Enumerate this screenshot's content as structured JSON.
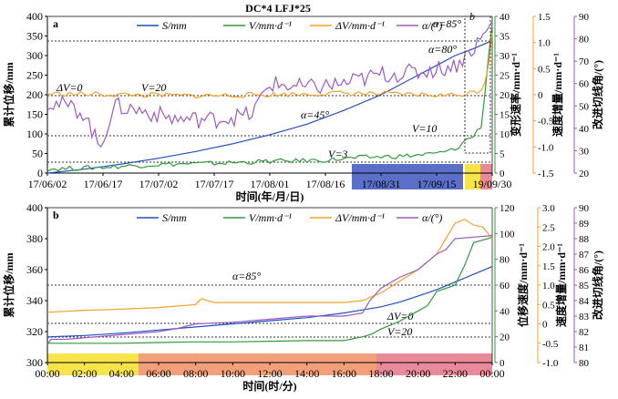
{
  "chart_data": [
    {
      "panel": "a",
      "type": "line",
      "title": "DC*4  LFJ*25",
      "xlabel": "时间(年/月/日)",
      "x_ticks": [
        "17/06/02",
        "17/06/17",
        "17/07/02",
        "17/07/17",
        "17/08/01",
        "17/08/16",
        "17/08/31",
        "17/09/15",
        "19/09/30"
      ],
      "y1": {
        "label": "累计位移/mm",
        "ticks": [
          "0",
          "50",
          "100",
          "150",
          "200",
          "250",
          "300",
          "350",
          "400"
        ],
        "lim": [
          0,
          400
        ]
      },
      "y2": {
        "label": "变形速率/mm·d⁻¹",
        "ticks": [
          "0",
          "5",
          "10",
          "15",
          "20",
          "25",
          "30",
          "35",
          "40"
        ],
        "lim": [
          0,
          40
        ]
      },
      "y3": {
        "label": "速度增量/mm·d⁻¹",
        "ticks": [
          "-1.5",
          "-1.0",
          "-0.5",
          "0",
          "0.5",
          "1.0",
          "1.5"
        ],
        "lim": [
          -1.5,
          1.5
        ]
      },
      "y4": {
        "label": "改进切线角/(°)",
        "ticks": [
          "20",
          "30",
          "40",
          "50",
          "60",
          "70",
          "80",
          "90"
        ],
        "lim": [
          20,
          90
        ]
      },
      "legend": [
        "S/mm",
        "V/mm·d⁻¹",
        "ΔV/mm·d⁻¹",
        "α/(°)"
      ],
      "annotations": [
        "ΔV=0",
        "V=20",
        "α=85°",
        "α=80°",
        "α=45°",
        "V=10",
        "V=3",
        "b"
      ],
      "series": [
        {
          "name": "S/mm",
          "x_days": [
            0,
            10,
            20,
            30,
            40,
            50,
            60,
            70,
            80,
            90,
            100,
            105,
            110,
            115,
            118,
            120
          ],
          "values": [
            0,
            10,
            23,
            38,
            55,
            75,
            98,
            125,
            160,
            200,
            250,
            275,
            300,
            318,
            330,
            338
          ]
        },
        {
          "name": "V/mm·d⁻¹",
          "x_days": [
            0,
            15,
            30,
            45,
            60,
            75,
            85,
            95,
            100,
            105,
            110,
            113,
            115,
            117,
            118,
            119,
            120
          ],
          "values": [
            1.0,
            1.5,
            2.2,
            2.5,
            3.0,
            3.3,
            4.0,
            4.3,
            4.6,
            5.0,
            6.0,
            8.5,
            9.5,
            12.0,
            20.0,
            30.0,
            38.0
          ]
        },
        {
          "name": "ΔV/mm·d⁻¹",
          "x_days": [
            0,
            20,
            40,
            60,
            80,
            100,
            110,
            115,
            117,
            118,
            119,
            120
          ],
          "values": [
            0.02,
            0.0,
            -0.02,
            0.0,
            0.03,
            0.0,
            -0.01,
            0.05,
            0.1,
            0.25,
            0.6,
            1.2
          ]
        },
        {
          "name": "α/(°)",
          "x_days": [
            0,
            5,
            10,
            14,
            18,
            25,
            35,
            45,
            55,
            60,
            70,
            80,
            90,
            100,
            110,
            115,
            118,
            120
          ],
          "values": [
            52,
            50,
            47,
            31,
            50,
            48,
            44,
            44,
            46,
            60,
            58,
            60,
            64,
            65,
            68,
            76,
            82,
            87
          ]
        }
      ],
      "bands": [
        "blue",
        "yellow",
        "red"
      ]
    },
    {
      "panel": "b",
      "type": "line",
      "xlabel": "时间(时/分)",
      "x_ticks": [
        "00:00",
        "02:00",
        "04:00",
        "06:00",
        "08:00",
        "10:00",
        "12:00",
        "14:00",
        "16:00",
        "18:00",
        "20:00",
        "22:00",
        "00:00"
      ],
      "y1": {
        "label": "累计位移/mm",
        "ticks": [
          "300",
          "320",
          "340",
          "360",
          "380",
          "400"
        ],
        "lim": [
          300,
          400
        ]
      },
      "y2": {
        "label": "位移速度/mm·d⁻¹",
        "ticks": [
          "0",
          "20",
          "40",
          "60",
          "80",
          "100",
          "120"
        ],
        "lim": [
          0,
          120
        ]
      },
      "y3": {
        "label": "速度增量/mm·d⁻¹",
        "ticks": [
          "-1.0",
          "-0.5",
          "0",
          "0.5",
          "1.0",
          "1.5",
          "2.0",
          "2.5",
          "3.0"
        ],
        "lim": [
          -1.0,
          3.0
        ]
      },
      "y4": {
        "label": "改进切线角/(°)",
        "ticks": [
          "80",
          "81",
          "82",
          "83",
          "84",
          "85",
          "86",
          "87",
          "88",
          "89",
          "90"
        ],
        "lim": [
          80,
          90
        ]
      },
      "legend": [
        "S/mm",
        "V/mm·d⁻¹",
        "ΔV/mm·d⁻¹",
        "α/(°)"
      ],
      "annotations": [
        "α=85°",
        "ΔV=0",
        "V=20"
      ],
      "series": [
        {
          "name": "S/mm",
          "x_hours": [
            0,
            2,
            4,
            6,
            8,
            10,
            12,
            14,
            16,
            17,
            18,
            19,
            20,
            21,
            22,
            23,
            24
          ],
          "values": [
            316.5,
            317.5,
            319,
            321,
            323,
            325,
            327,
            329,
            332,
            334,
            336,
            339,
            343,
            347,
            352,
            357,
            362
          ]
        },
        {
          "name": "V/mm·d⁻¹",
          "x_hours": [
            0,
            2,
            4,
            6,
            8,
            10,
            12,
            14,
            16,
            17,
            17.5,
            18,
            19,
            20,
            20.5,
            21,
            22,
            22.5,
            23,
            24
          ],
          "values": [
            15,
            15,
            15,
            15.5,
            16,
            16,
            16.5,
            17,
            17,
            20,
            22,
            26,
            32,
            40,
            44,
            55,
            60,
            75,
            93,
            97
          ]
        },
        {
          "name": "ΔV/mm·d⁻¹",
          "x_hours": [
            0,
            2,
            4,
            6,
            8,
            8.3,
            9,
            12,
            14,
            16,
            17,
            18,
            19,
            20,
            21,
            22,
            22.5,
            23,
            23.5,
            24
          ],
          "values": [
            0.3,
            0.35,
            0.38,
            0.42,
            0.5,
            0.65,
            0.55,
            0.55,
            0.55,
            0.55,
            0.6,
            0.8,
            1.1,
            1.4,
            1.8,
            2.6,
            2.7,
            2.55,
            2.5,
            2.2
          ]
        },
        {
          "name": "α/(°)",
          "x_hours": [
            0,
            0.2,
            1,
            4,
            6,
            7,
            8,
            10,
            12,
            14,
            16,
            17,
            17.4,
            18,
            19,
            20,
            20.5,
            21,
            21.5,
            22,
            23,
            24
          ],
          "values": [
            81.2,
            81.5,
            81.5,
            81.8,
            82,
            82.2,
            82.5,
            82.6,
            82.8,
            83,
            83,
            83.2,
            84,
            84.8,
            85.5,
            86,
            86.5,
            87,
            87.3,
            88,
            88.1,
            88.2
          ]
        }
      ],
      "bands": [
        "yellow",
        "orange",
        "red"
      ]
    }
  ],
  "colors": {
    "S": "#1f4fbf",
    "V": "#2f9a3a",
    "dV": "#f5a02a",
    "alpha": "#9b5bbf",
    "band_blue": "#5b6fc8",
    "band_yellow": "#f7e34a",
    "band_orange": "#f2a07a",
    "band_red": "#e88a9a"
  }
}
